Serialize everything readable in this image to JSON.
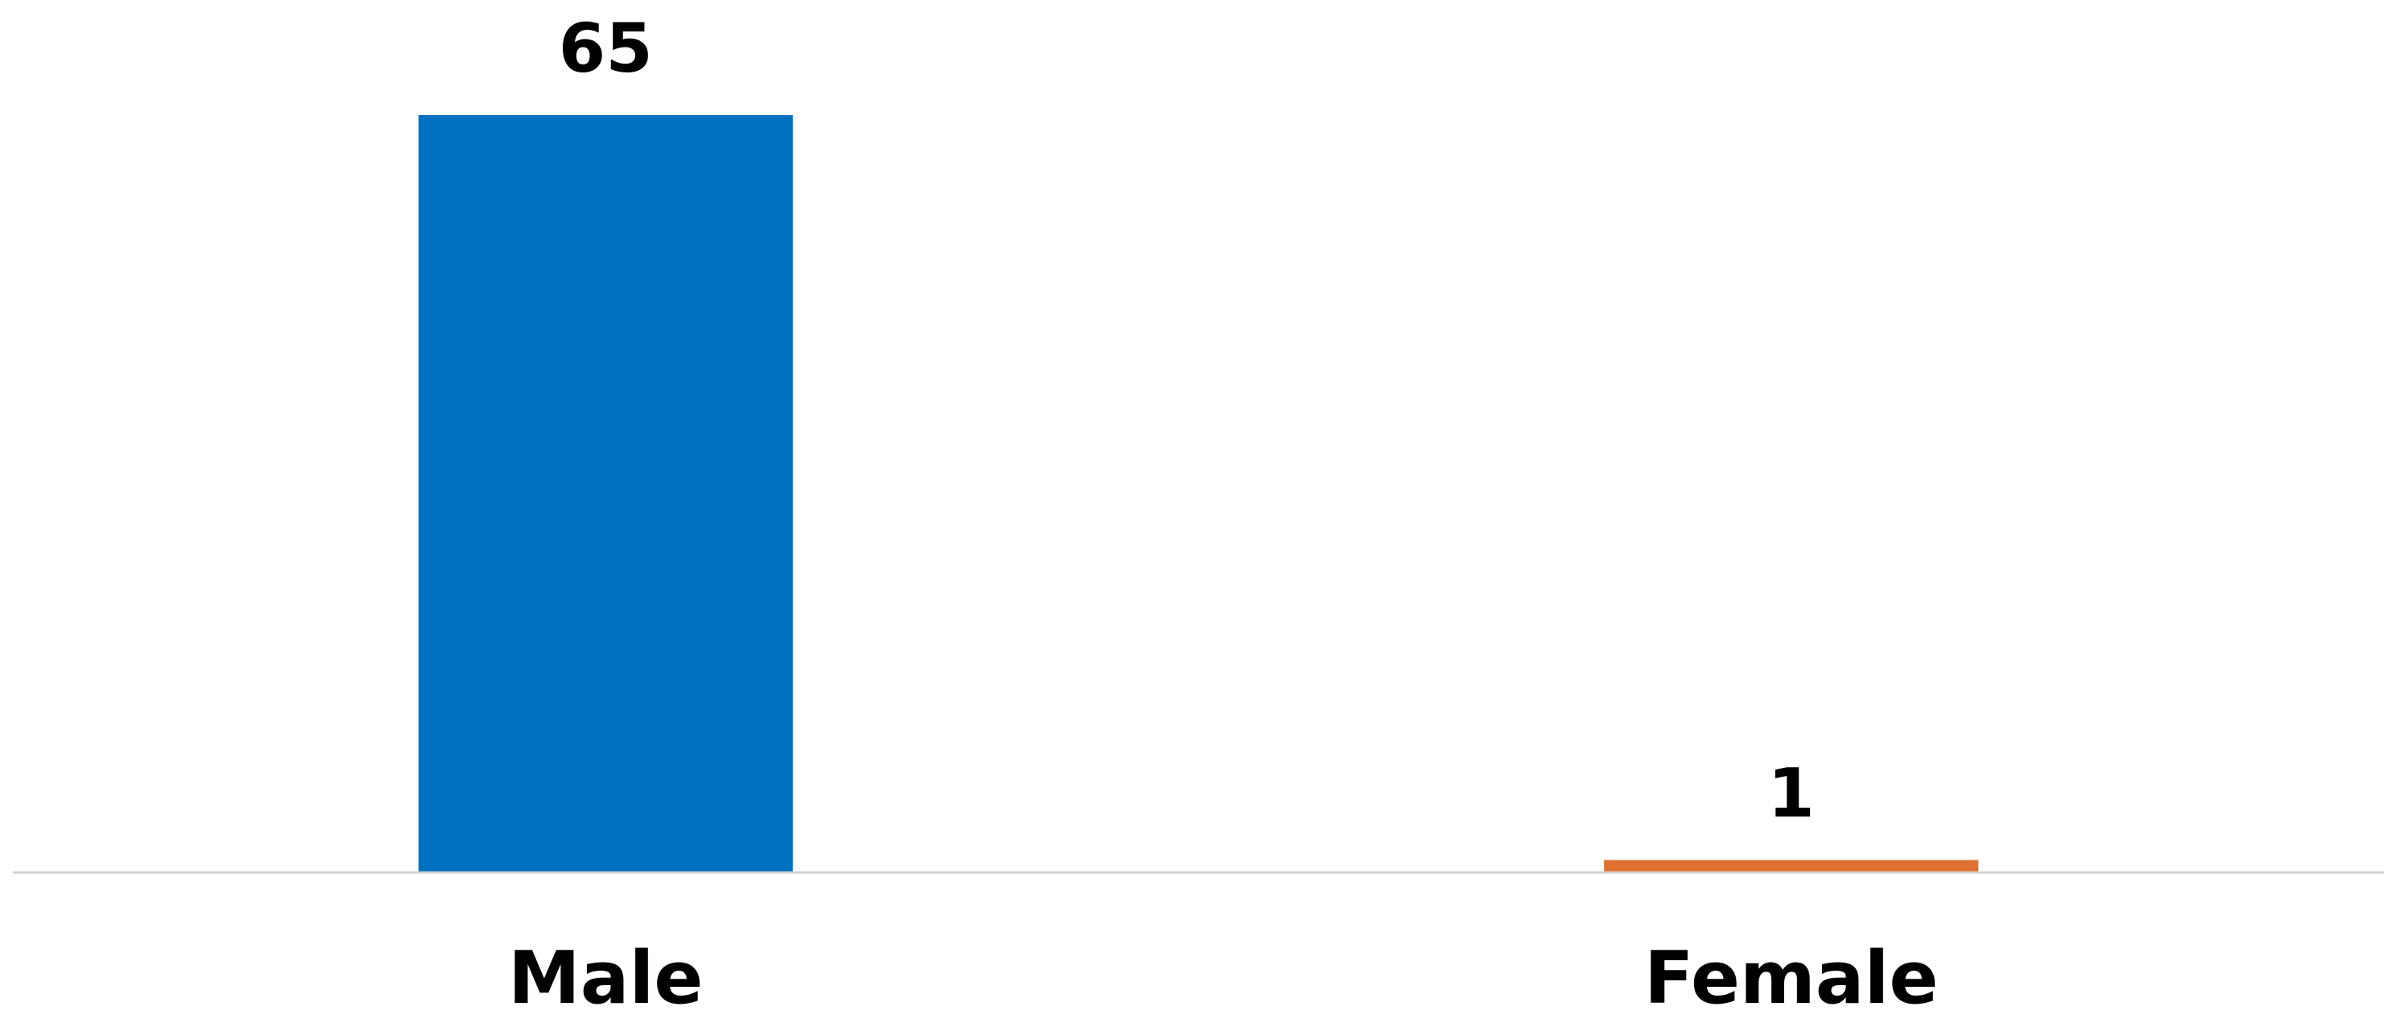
{
  "chart_data": {
    "type": "bar",
    "categories": [
      "Male",
      "Female"
    ],
    "values": [
      65,
      1
    ],
    "colors": [
      "#0070C0",
      "#E07030"
    ],
    "title": "",
    "xlabel": "",
    "ylabel": "",
    "ylim": [
      0,
      65
    ],
    "grid": false,
    "legend": "none",
    "data_labels": true,
    "axis_color": "#d0d0d0"
  }
}
